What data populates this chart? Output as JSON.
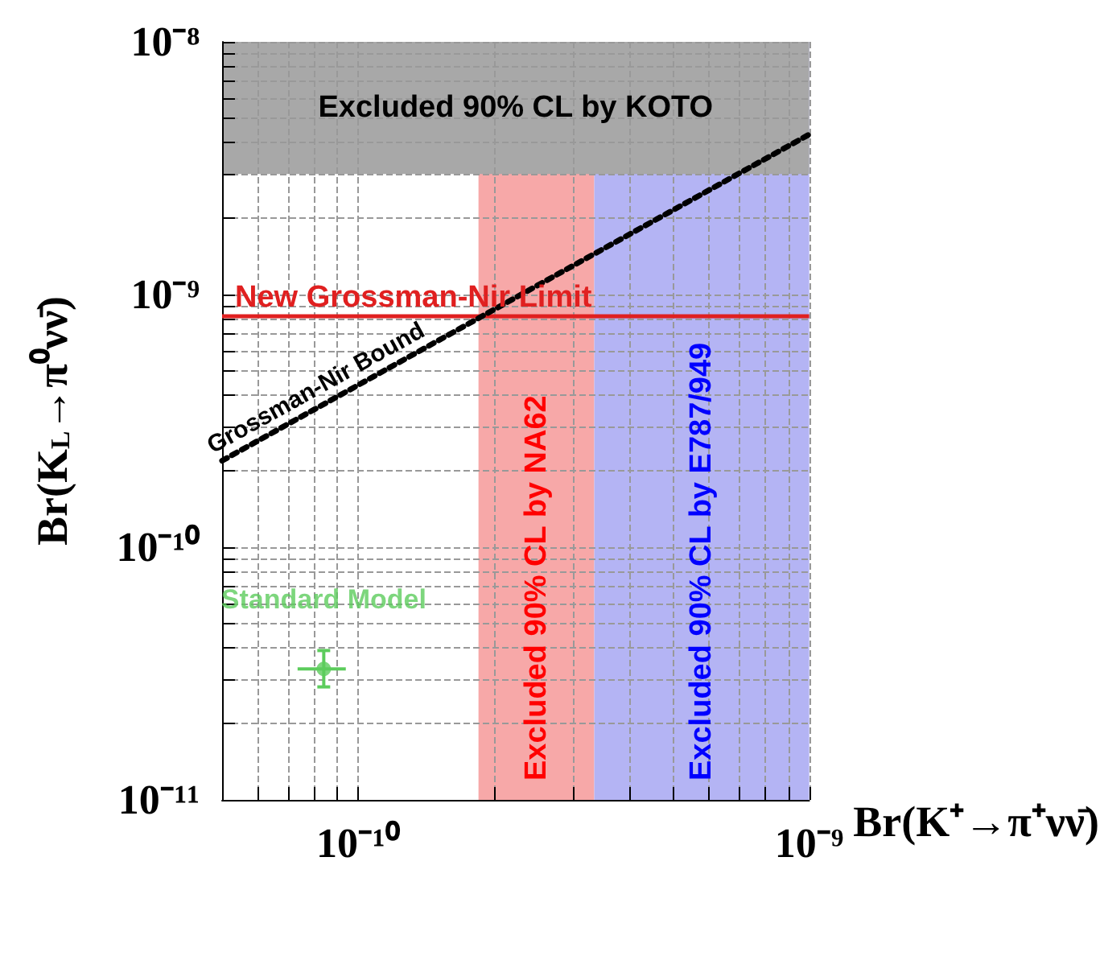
{
  "chart_data": {
    "type": "scatter",
    "xlabel": "Br(K⁺→π⁺νν̄)",
    "ylabel": "Br(K$_{L}$→π⁰νν̄)",
    "log": "xy",
    "xlim": [
      5e-11,
      1e-09
    ],
    "ylim": [
      1e-11,
      1e-08
    ],
    "xticks": [
      {
        "value": 6e-11,
        "label": null
      },
      {
        "value": 7e-11,
        "label": null
      },
      {
        "value": 8e-11,
        "label": null
      },
      {
        "value": 9e-11,
        "label": null
      },
      {
        "value": 1e-10,
        "label": "10⁻¹⁰"
      },
      {
        "value": 2e-10,
        "label": null
      },
      {
        "value": 3e-10,
        "label": null
      },
      {
        "value": 4e-10,
        "label": null
      },
      {
        "value": 5e-10,
        "label": null
      },
      {
        "value": 6e-10,
        "label": null
      },
      {
        "value": 7e-10,
        "label": null
      },
      {
        "value": 8e-10,
        "label": null
      },
      {
        "value": 9e-10,
        "label": null
      },
      {
        "value": 1e-09,
        "label": "10⁻⁹"
      }
    ],
    "yticks": [
      {
        "value": 1e-11,
        "label": "10⁻¹¹"
      },
      {
        "value": 2e-11,
        "label": null
      },
      {
        "value": 3e-11,
        "label": null
      },
      {
        "value": 4e-11,
        "label": null
      },
      {
        "value": 5e-11,
        "label": null
      },
      {
        "value": 6e-11,
        "label": null
      },
      {
        "value": 7e-11,
        "label": null
      },
      {
        "value": 8e-11,
        "label": null
      },
      {
        "value": 9e-11,
        "label": null
      },
      {
        "value": 1e-10,
        "label": "10⁻¹⁰"
      },
      {
        "value": 2e-10,
        "label": null
      },
      {
        "value": 3e-10,
        "label": null
      },
      {
        "value": 4e-10,
        "label": null
      },
      {
        "value": 5e-10,
        "label": null
      },
      {
        "value": 6e-10,
        "label": null
      },
      {
        "value": 7e-10,
        "label": null
      },
      {
        "value": 8e-10,
        "label": null
      },
      {
        "value": 9e-10,
        "label": null
      },
      {
        "value": 1e-09,
        "label": "10⁻⁹"
      },
      {
        "value": 2e-09,
        "label": null
      },
      {
        "value": 3e-09,
        "label": null
      },
      {
        "value": 4e-09,
        "label": null
      },
      {
        "value": 5e-09,
        "label": null
      },
      {
        "value": 6e-09,
        "label": null
      },
      {
        "value": 7e-09,
        "label": null
      },
      {
        "value": 8e-09,
        "label": null
      },
      {
        "value": 9e-09,
        "label": null
      },
      {
        "value": 1e-08,
        "label": "10⁻⁸"
      }
    ],
    "grid": true,
    "legend": false,
    "series": [
      {
        "name": "Standard Model",
        "color": "#5ccc5c",
        "marker": "circle",
        "x": [
          8.4e-11
        ],
        "values": [
          3.3e-11
        ],
        "xerrors": [
          [
            7.35e-11,
            9.4e-11
          ]
        ],
        "errors": [
          [
            2.8e-11,
            3.9e-11
          ]
        ]
      },
      {
        "name": "Grossman-Nir Bound",
        "type": "line",
        "color": "#000000",
        "marker": "none",
        "line_style": "dotted",
        "x": [
          5e-11,
          1e-09
        ],
        "values": [
          2.2e-10,
          4.3e-09
        ]
      }
    ],
    "ref_lines": [
      {
        "axis": "y",
        "value": 8.2e-10,
        "label": "New Grossman-Nir Limit",
        "color": "#e02020"
      }
    ],
    "bands": [
      {
        "axis": "x",
        "from": 1.85e-10,
        "to": 3.34e-10,
        "label": "Excluded 90% CL by NA62",
        "color": "#f7a8a8"
      },
      {
        "axis": "x",
        "from": 3.34e-10,
        "to": 1e-09,
        "label": "Excluded 90% CL by E787/949",
        "color": "#b4b4f4"
      },
      {
        "axis": "y",
        "from": 3e-09,
        "to": 1e-08,
        "label": "Excluded 90% CL by KOTO",
        "color": "#a8a8a8"
      }
    ]
  }
}
